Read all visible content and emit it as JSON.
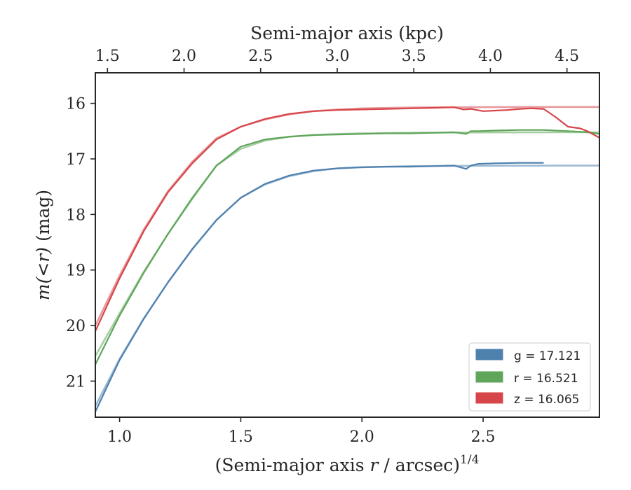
{
  "chart_data": {
    "type": "line",
    "xlabel_prefix": "(Semi-major axis ",
    "xlabel_var": "r",
    "xlabel_suffix": " / arcsec)",
    "xlabel_sup": "1/4",
    "ylabel_var": "m(<r)",
    "ylabel_unit": " (mag)",
    "top_xlabel": "Semi-major axis (kpc)",
    "xlim": [
      0.9,
      2.98
    ],
    "ylim": [
      21.65,
      15.45
    ],
    "y_inverted": true,
    "x_ticks": [
      1.0,
      1.5,
      2.0,
      2.5
    ],
    "x_tick_labels": [
      "1.0",
      "1.5",
      "2.0",
      "2.5"
    ],
    "top_x_ticks": [
      1.5,
      2.0,
      2.5,
      3.0,
      3.5,
      4.0,
      4.5
    ],
    "top_x_tick_labels": [
      "1.5",
      "2.0",
      "2.5",
      "3.0",
      "3.5",
      "4.0",
      "4.5"
    ],
    "top_x_tick_positions": [
      0.95,
      1.266,
      1.582,
      1.898,
      2.214,
      2.53,
      2.846
    ],
    "y_ticks": [
      16,
      17,
      18,
      19,
      20,
      21
    ],
    "y_tick_labels": [
      "16",
      "17",
      "18",
      "19",
      "20",
      "21"
    ],
    "legend_position": "lower-right",
    "series": [
      {
        "name": "g",
        "legend_label": "g = 17.121",
        "color": "#4f81af",
        "data_x": [
          0.9,
          1.0,
          1.1,
          1.2,
          1.3,
          1.4,
          1.5,
          1.6,
          1.7,
          1.8,
          1.9,
          2.0,
          2.1,
          2.2,
          2.3,
          2.38,
          2.43,
          2.45,
          2.48,
          2.55,
          2.65,
          2.75
        ],
        "data_y": [
          21.55,
          20.62,
          19.88,
          19.22,
          18.62,
          18.1,
          17.7,
          17.45,
          17.3,
          17.21,
          17.17,
          17.15,
          17.14,
          17.14,
          17.13,
          17.12,
          17.18,
          17.12,
          17.09,
          17.08,
          17.07,
          17.07
        ],
        "model_x": [
          0.9,
          1.0,
          1.1,
          1.2,
          1.3,
          1.4,
          1.5,
          1.6,
          1.7,
          1.8,
          1.9,
          2.0,
          2.2,
          2.4,
          2.6,
          2.8,
          2.98
        ],
        "model_y": [
          21.45,
          20.6,
          19.87,
          19.22,
          18.63,
          18.1,
          17.7,
          17.46,
          17.31,
          17.22,
          17.17,
          17.15,
          17.13,
          17.125,
          17.122,
          17.121,
          17.121
        ]
      },
      {
        "name": "r",
        "legend_label": "r = 16.521",
        "color": "#5fa55a",
        "data_x": [
          0.9,
          1.0,
          1.1,
          1.2,
          1.3,
          1.4,
          1.5,
          1.6,
          1.7,
          1.8,
          1.9,
          2.0,
          2.1,
          2.2,
          2.3,
          2.38,
          2.43,
          2.45,
          2.48,
          2.55,
          2.65,
          2.75,
          2.85,
          2.93,
          2.98
        ],
        "data_y": [
          20.7,
          19.82,
          19.05,
          18.35,
          17.7,
          17.12,
          16.78,
          16.65,
          16.6,
          16.57,
          16.56,
          16.55,
          16.54,
          16.54,
          16.53,
          16.52,
          16.55,
          16.5,
          16.5,
          16.49,
          16.48,
          16.48,
          16.5,
          16.52,
          16.55
        ],
        "model_x": [
          0.9,
          1.0,
          1.1,
          1.2,
          1.3,
          1.4,
          1.5,
          1.6,
          1.7,
          1.8,
          1.9,
          2.0,
          2.2,
          2.4,
          2.6,
          2.8,
          2.98
        ],
        "model_y": [
          20.55,
          19.78,
          19.03,
          18.35,
          17.72,
          17.12,
          16.82,
          16.67,
          16.6,
          16.57,
          16.55,
          16.54,
          16.53,
          16.525,
          16.522,
          16.521,
          16.521
        ]
      },
      {
        "name": "z",
        "legend_label": "z = 16.065",
        "color": "#d6454a",
        "data_x": [
          0.9,
          1.0,
          1.1,
          1.2,
          1.3,
          1.4,
          1.5,
          1.6,
          1.7,
          1.8,
          1.9,
          2.0,
          2.1,
          2.2,
          2.3,
          2.38,
          2.42,
          2.45,
          2.5,
          2.55,
          2.6,
          2.65,
          2.7,
          2.75,
          2.8,
          2.85,
          2.9,
          2.93,
          2.98
        ],
        "data_y": [
          20.1,
          19.15,
          18.3,
          17.6,
          17.08,
          16.65,
          16.42,
          16.28,
          16.19,
          16.14,
          16.12,
          16.11,
          16.1,
          16.09,
          16.08,
          16.07,
          16.11,
          16.1,
          16.14,
          16.13,
          16.12,
          16.1,
          16.09,
          16.1,
          16.25,
          16.42,
          16.45,
          16.5,
          16.62
        ],
        "model_x": [
          0.9,
          1.0,
          1.1,
          1.2,
          1.3,
          1.4,
          1.5,
          1.6,
          1.7,
          1.8,
          1.9,
          2.0,
          2.2,
          2.4,
          2.6,
          2.8,
          2.98
        ],
        "model_y": [
          20.0,
          19.1,
          18.27,
          17.58,
          17.05,
          16.63,
          16.42,
          16.29,
          16.2,
          16.14,
          16.11,
          16.09,
          16.075,
          16.07,
          16.066,
          16.065,
          16.065
        ]
      }
    ]
  }
}
